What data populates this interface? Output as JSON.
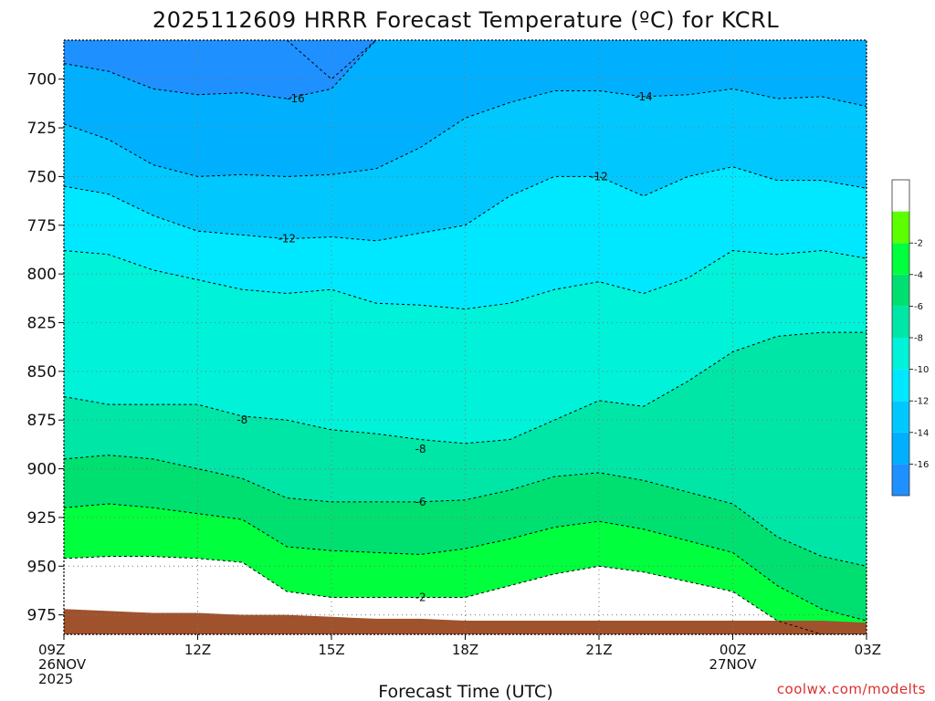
{
  "chart_data": {
    "type": "heatmap",
    "title": "2025112609 HRRR Forecast Temperature (ºC) for KCRL",
    "xlabel": "Forecast Time (UTC)",
    "ylabel": "",
    "credit": "coolwx.com/modelts",
    "y_axis": {
      "inverted": true,
      "range": [
        985,
        680
      ],
      "ticks": [
        700,
        725,
        750,
        775,
        800,
        825,
        850,
        875,
        900,
        925,
        950,
        975
      ]
    },
    "x_axis": {
      "range_hours": [
        0,
        18
      ],
      "ticks": [
        {
          "hour": 0,
          "lines": [
            "09Z",
            "26NOV",
            "2025"
          ]
        },
        {
          "hour": 3,
          "lines": [
            "12Z"
          ]
        },
        {
          "hour": 6,
          "lines": [
            "15Z"
          ]
        },
        {
          "hour": 9,
          "lines": [
            "18Z"
          ]
        },
        {
          "hour": 12,
          "lines": [
            "21Z"
          ]
        },
        {
          "hour": 15,
          "lines": [
            "00Z",
            "27NOV"
          ]
        },
        {
          "hour": 18,
          "lines": [
            "03Z"
          ]
        }
      ]
    },
    "grid": true,
    "colorbar": {
      "position": "right",
      "levels": [
        -18,
        -16,
        -14,
        -12,
        -10,
        -8,
        -6,
        -4,
        -2,
        0
      ],
      "colors": [
        "#1e90ff",
        "#00b0ff",
        "#00c8ff",
        "#00e8ff",
        "#00f2d8",
        "#00e6a6",
        "#00e070",
        "#00ff3c",
        "#5cff00",
        "#ffffff"
      ],
      "labels": [
        "-16",
        "-14",
        "-12",
        "-10",
        "-8",
        "-6",
        "-4",
        "-2"
      ]
    },
    "hours": [
      0,
      1,
      2,
      3,
      4,
      5,
      6,
      7,
      8,
      9,
      10,
      11,
      12,
      13,
      14,
      15,
      16,
      17,
      18
    ],
    "surface_pressure": [
      972,
      973,
      974,
      974,
      975,
      975,
      976,
      977,
      977,
      978,
      978,
      978,
      978,
      978,
      978,
      978,
      978,
      978,
      979
    ],
    "isotherms": [
      {
        "value": -18,
        "pressure": [
          null,
          null,
          null,
          null,
          null,
          680,
          700,
          680,
          null,
          null,
          null,
          null,
          null,
          null,
          null,
          null,
          null,
          null,
          null
        ]
      },
      {
        "value": -16,
        "pressure": [
          692,
          696,
          705,
          708,
          707,
          710,
          705,
          680,
          null,
          null,
          null,
          null,
          null,
          null,
          null,
          null,
          null,
          null,
          null
        ]
      },
      {
        "value": -14,
        "pressure": [
          723,
          731,
          744,
          750,
          749,
          750,
          749,
          746,
          735,
          720,
          712,
          706,
          706,
          709,
          708,
          705,
          710,
          709,
          714
        ]
      },
      {
        "value": -12,
        "pressure": [
          755,
          759,
          770,
          778,
          780,
          782,
          781,
          783,
          779,
          775,
          760,
          750,
          750,
          760,
          750,
          745,
          752,
          752,
          756
        ]
      },
      {
        "value": -10,
        "pressure": [
          788,
          790,
          798,
          803,
          808,
          810,
          808,
          815,
          816,
          818,
          815,
          808,
          804,
          810,
          802,
          788,
          790,
          788,
          792
        ]
      },
      {
        "value": -8,
        "pressure": [
          863,
          867,
          867,
          867,
          873,
          875,
          880,
          882,
          885,
          887,
          885,
          875,
          865,
          868,
          855,
          840,
          832,
          830,
          830
        ]
      },
      {
        "value": -6,
        "pressure": [
          895,
          893,
          895,
          900,
          905,
          915,
          917,
          917,
          917,
          916,
          911,
          904,
          902,
          906,
          912,
          918,
          935,
          945,
          950
        ]
      },
      {
        "value": -4,
        "pressure": [
          920,
          918,
          920,
          923,
          926,
          940,
          942,
          943,
          944,
          941,
          936,
          930,
          927,
          931,
          937,
          943,
          960,
          972,
          978
        ]
      },
      {
        "value": -2,
        "pressure": [
          946,
          945,
          945,
          946,
          948,
          963,
          966,
          966,
          966,
          966,
          960,
          954,
          950,
          953,
          958,
          963,
          978,
          985,
          985
        ]
      }
    ],
    "contour_labels": [
      {
        "text": "-16",
        "hour": 5.2,
        "pressure": 710
      },
      {
        "text": "-14",
        "hour": 13.0,
        "pressure": 709
      },
      {
        "text": "-12",
        "hour": 12.0,
        "pressure": 750
      },
      {
        "text": "-12",
        "hour": 5.0,
        "pressure": 782
      },
      {
        "text": "-8",
        "hour": 4.0,
        "pressure": 875
      },
      {
        "text": "-8",
        "hour": 8.0,
        "pressure": 890
      },
      {
        "text": "-6",
        "hour": 8.0,
        "pressure": 917
      },
      {
        "text": "-2",
        "hour": 8.0,
        "pressure": 966
      }
    ]
  }
}
